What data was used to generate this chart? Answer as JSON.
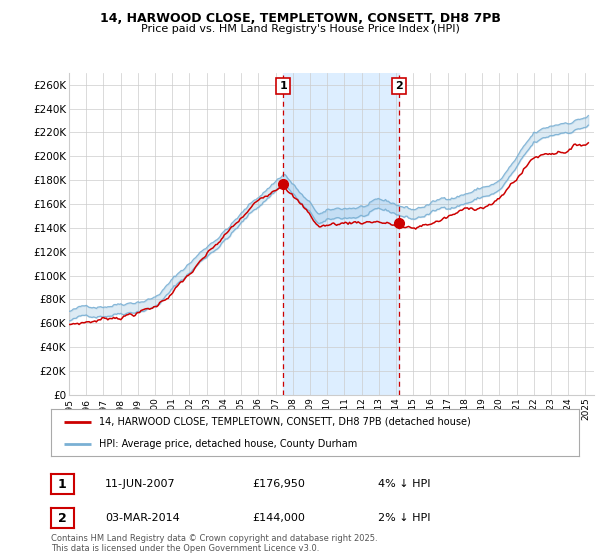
{
  "title1": "14, HARWOOD CLOSE, TEMPLETOWN, CONSETT, DH8 7PB",
  "title2": "Price paid vs. HM Land Registry's House Price Index (HPI)",
  "ylim": [
    0,
    270000
  ],
  "yticks": [
    0,
    20000,
    40000,
    60000,
    80000,
    100000,
    120000,
    140000,
    160000,
    180000,
    200000,
    220000,
    240000,
    260000
  ],
  "ytick_labels": [
    "£0",
    "£20K",
    "£40K",
    "£60K",
    "£80K",
    "£100K",
    "£120K",
    "£140K",
    "£160K",
    "£180K",
    "£200K",
    "£220K",
    "£240K",
    "£260K"
  ],
  "sale1_date": 2007.44,
  "sale1_price": 176950,
  "sale1_label": "1",
  "sale2_date": 2014.17,
  "sale2_price": 144000,
  "sale2_label": "2",
  "line_red_color": "#cc0000",
  "line_blue_color": "#7ab0d4",
  "shade_color": "#ddeeff",
  "dashed_color": "#cc0000",
  "background_color": "#ffffff",
  "grid_color": "#cccccc",
  "legend1_text": "14, HARWOOD CLOSE, TEMPLETOWN, CONSETT, DH8 7PB (detached house)",
  "legend2_text": "HPI: Average price, detached house, County Durham",
  "annotation1_date": "11-JUN-2007",
  "annotation1_price": "£176,950",
  "annotation1_hpi": "4% ↓ HPI",
  "annotation2_date": "03-MAR-2014",
  "annotation2_price": "£144,000",
  "annotation2_hpi": "2% ↓ HPI",
  "footnote": "Contains HM Land Registry data © Crown copyright and database right 2025.\nThis data is licensed under the Open Government Licence v3.0."
}
